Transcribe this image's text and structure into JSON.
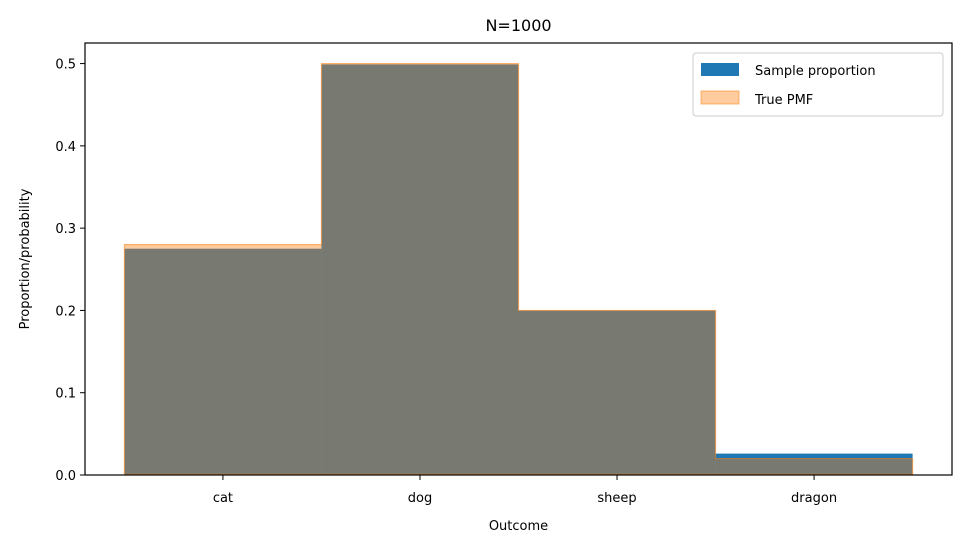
{
  "chart_data": {
    "type": "bar",
    "title": "N=1000",
    "xlabel": "Outcome",
    "ylabel": "Proportion/probability",
    "categories": [
      "cat",
      "dog",
      "sheep",
      "dragon"
    ],
    "ylim": [
      0,
      0.525
    ],
    "yticks": [
      0.0,
      0.1,
      0.2,
      0.3,
      0.4,
      0.5
    ],
    "ytick_labels": [
      "0.0",
      "0.1",
      "0.2",
      "0.3",
      "0.4",
      "0.5"
    ],
    "grid": false,
    "legend_position": "top-right",
    "series": [
      {
        "name": "Sample proportion",
        "values": [
          0.275,
          0.499,
          0.2,
          0.026
        ],
        "color": "#1f77b4",
        "style": "filled step"
      },
      {
        "name": "True PMF",
        "values": [
          0.28,
          0.5,
          0.2,
          0.02
        ],
        "color": "#ff7f0e",
        "style": "translucent filled step"
      }
    ]
  }
}
